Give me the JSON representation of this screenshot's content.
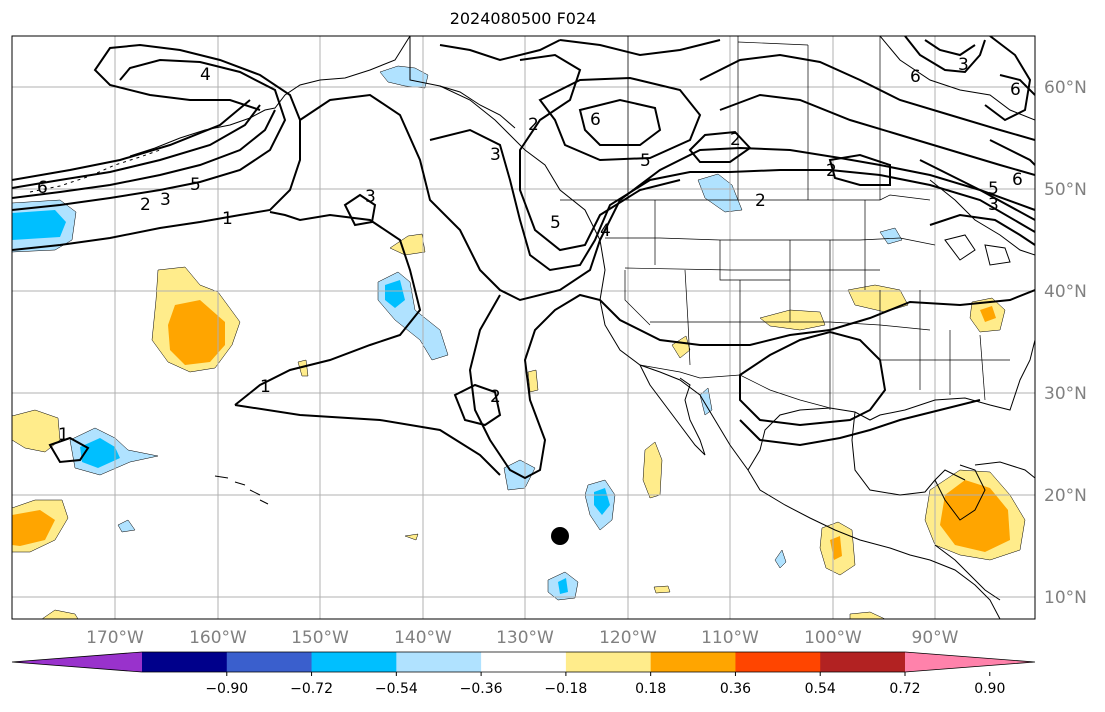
{
  "title": "2024080500 F024",
  "map": {
    "lon_ticks": [
      "170°W",
      "160°W",
      "150°W",
      "140°W",
      "130°W",
      "120°W",
      "110°W",
      "100°W",
      "90°W"
    ],
    "lat_ticks": [
      "60°N",
      "50°N",
      "40°N",
      "30°N",
      "20°N",
      "10°N"
    ],
    "contour_labels": [
      "4",
      "6",
      "5",
      "3",
      "2",
      "1",
      "3",
      "6",
      "5",
      "3",
      "2",
      "5",
      "4",
      "2",
      "2",
      "2",
      "1",
      "2",
      "1",
      "3",
      "6",
      "6",
      "5",
      "3",
      "6"
    ],
    "colors": {
      "contour": "#000000",
      "coast": "#000000",
      "grid": "#b0b0b0",
      "ocean": "#ffffff"
    }
  },
  "colorbar": {
    "colors": [
      "#9932cc",
      "#00008b",
      "#3a5fcd",
      "#00bfff",
      "#b0e2ff",
      "#ffffff",
      "#ffec8b",
      "#ffa500",
      "#ff4500",
      "#b22222",
      "#ff82ab"
    ],
    "tick_labels": [
      "−0.90",
      "−0.72",
      "−0.54",
      "−0.36",
      "−0.18",
      "0.18",
      "0.36",
      "0.54",
      "0.72",
      "0.90"
    ]
  }
}
